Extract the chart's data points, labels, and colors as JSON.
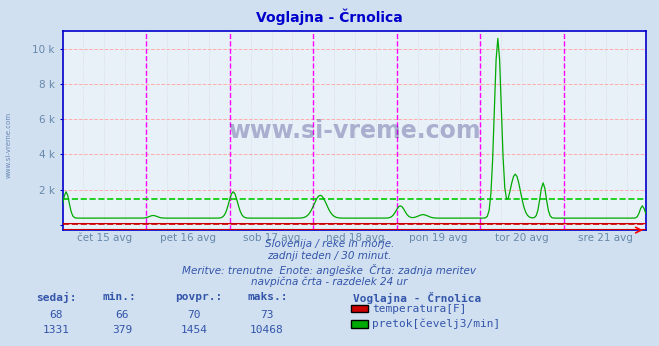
{
  "title": "Voglajna - Črnolica",
  "bg_color": "#d0e0f0",
  "plot_bg_color": "#e8f0f8",
  "title_color": "#0000cc",
  "grid_color_h": "#ffaaaa",
  "grid_color_v": "#ccccdd",
  "vline_color_day": "#ff00ff",
  "axis_color": "#0000cc",
  "flow_color": "#00aa00",
  "temp_color": "#cc0000",
  "flow_dashed_color": "#00cc00",
  "temp_dashed_color": "#cc0000",
  "ylabel_color": "#6688aa",
  "xlabel_color": "#6688aa",
  "text_color": "#3355aa",
  "yticks": [
    0,
    2000,
    4000,
    6000,
    8000,
    10000
  ],
  "ytick_labels": [
    "",
    "2 k",
    "4 k",
    "6 k",
    "8 k",
    "10 k"
  ],
  "ymax": 11000,
  "ymin": -300,
  "n_points": 336,
  "subtitle_lines": [
    "Slovenija / reke in morje.",
    "zadnji teden / 30 minut.",
    "Meritve: trenutne  Enote: angleške  Črta: zadnja meritev",
    "navpična črta - razdelek 24 ur"
  ],
  "legend_entries": [
    {
      "label": "temperatura[F]",
      "color": "#cc0000"
    },
    {
      "label": "pretok[čevelj3/min]",
      "color": "#00aa00"
    }
  ],
  "stats_headers": [
    "sedaj:",
    "min.:",
    "povpr.:",
    "maks.:"
  ],
  "stats_temp": [
    68,
    66,
    70,
    73
  ],
  "stats_flow": [
    1331,
    379,
    1454,
    10468
  ],
  "legend_title": "Voglajna - Črnolica",
  "watermark": "www.si-vreme.com",
  "day_labels": [
    "čet 15 avg",
    "pet 16 avg",
    "sob 17 avg",
    "ned 18 avg",
    "pon 19 avg",
    "tor 20 avg",
    "sre 21 avg"
  ],
  "day_positions": [
    0,
    48,
    96,
    144,
    192,
    240,
    288
  ],
  "temp_avg": 70,
  "flow_avg": 1454,
  "n_total": 336
}
